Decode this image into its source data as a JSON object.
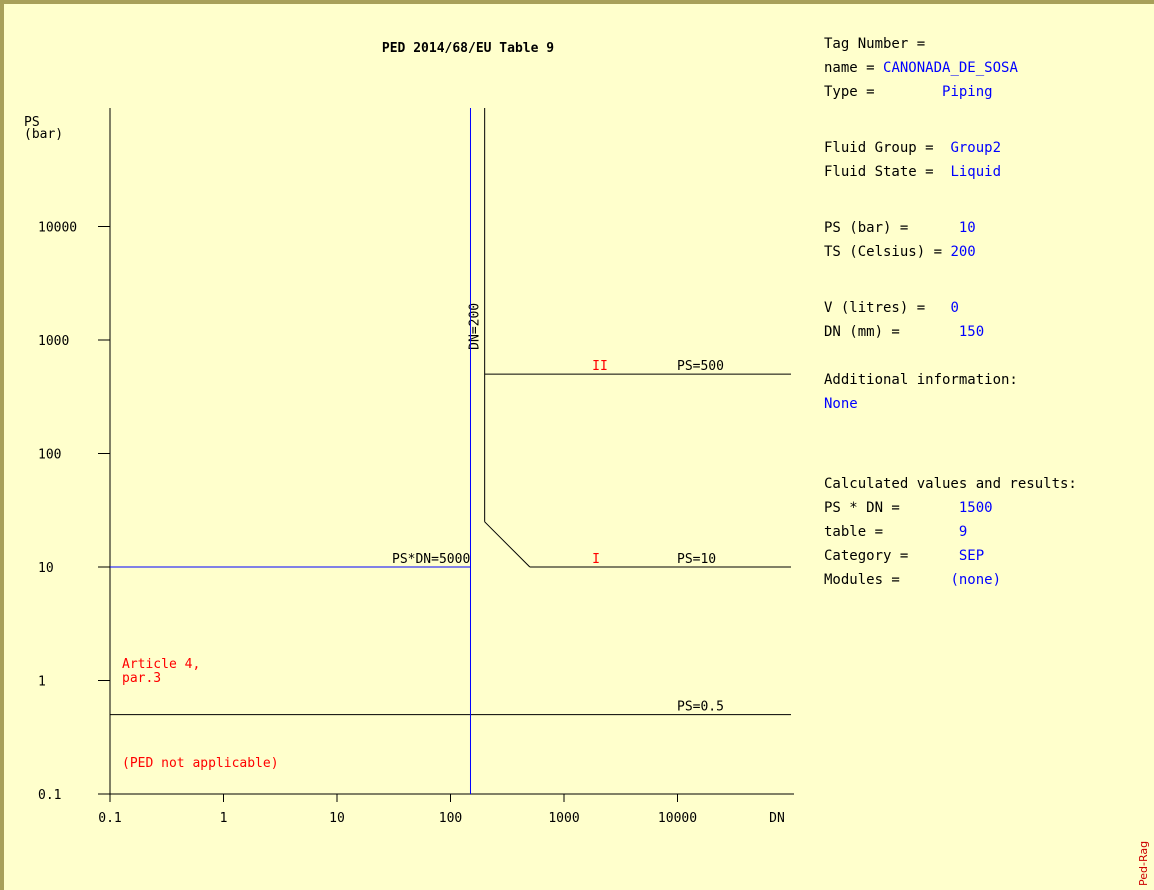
{
  "chart_data": {
    "type": "line",
    "title": "PED 2014/68/EU Table 9",
    "xlabel": "DN",
    "ylabel": "PS\n(bar)",
    "xscale": "log",
    "yscale": "log",
    "xlim": [
      0.1,
      100000
    ],
    "ylim": [
      0.1,
      100000
    ],
    "x_ticks": [
      "0.1",
      "1",
      "10",
      "100",
      "1000",
      "10000"
    ],
    "y_ticks": [
      "0.1",
      "1",
      "10",
      "100",
      "1000",
      "10000"
    ],
    "boundaries": [
      {
        "label": "PS=500",
        "y": 500,
        "x_from": 200,
        "x_to": 100000
      },
      {
        "label": "PS=10",
        "y": 10,
        "x_from": 500,
        "x_to": 100000
      },
      {
        "label": "PS=0.5",
        "y": 0.5,
        "x_from": 0.1,
        "x_to": 100000
      },
      {
        "label": "DN=200",
        "x": 200,
        "y_from": 25,
        "y_to": 100000
      },
      {
        "label": "PS*DN=5000",
        "points": [
          [
            200,
            25
          ],
          [
            500,
            10
          ]
        ]
      }
    ],
    "regions": [
      {
        "label": "II",
        "x": 2000,
        "y": 500
      },
      {
        "label": "I",
        "x": 2000,
        "y": 10
      }
    ],
    "notes": [
      {
        "lines": [
          "Article 4,",
          "par.3"
        ]
      },
      {
        "lines": [
          "(PED not applicable)"
        ]
      }
    ],
    "operating_point": {
      "x": 150,
      "y": 10
    },
    "colors": {
      "axes": "#000000",
      "operating_point": "#0000ff",
      "region_labels": "#ff0000",
      "background": "#ffffcc"
    },
    "grid": false
  },
  "info": {
    "rows": [
      {
        "label": "Tag Number =",
        "value": ""
      },
      {
        "label": "name = ",
        "value": "CANONADA_DE_SOSA"
      },
      {
        "label": "Type =        ",
        "value": "Piping"
      },
      {
        "label": "Fluid Group =  ",
        "value": "Group2"
      },
      {
        "label": "Fluid State =  ",
        "value": "Liquid"
      },
      {
        "label": "PS (bar) =      ",
        "value": "10"
      },
      {
        "label": "TS (Celsius) = ",
        "value": "200"
      },
      {
        "label": "V (litres) =   ",
        "value": "0"
      },
      {
        "label": "DN (mm) =       ",
        "value": "150"
      },
      {
        "label": "Additional information:",
        "value": ""
      },
      {
        "label": "",
        "value": "None"
      },
      {
        "label": "Calculated values and results:",
        "value": ""
      },
      {
        "label": "PS * DN =       ",
        "value": "1500"
      },
      {
        "label": "table =         ",
        "value": "9"
      },
      {
        "label": "Category =      ",
        "value": "SEP"
      },
      {
        "label": "Modules =      ",
        "value": "(none)"
      }
    ]
  },
  "signature": "Ped-Rag"
}
